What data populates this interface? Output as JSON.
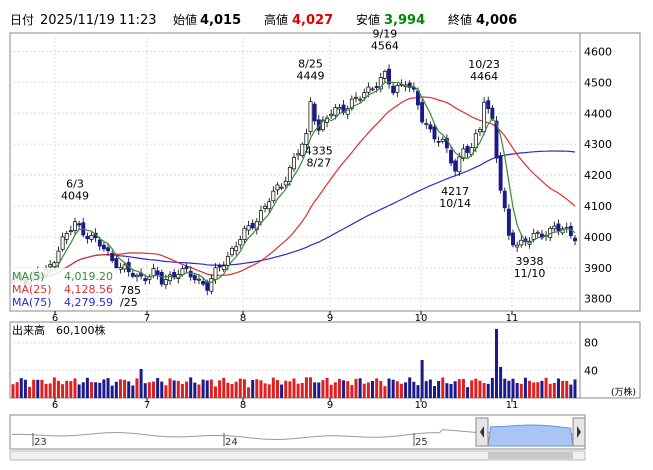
{
  "header": {
    "date_label": "日付",
    "date": "2025/11/19 11:23",
    "open_label": "始値",
    "open": "4,015",
    "high_label": "高値",
    "high": "4,027",
    "low_label": "安値",
    "low": "3,994",
    "close_label": "終値",
    "close": "4,006"
  },
  "colors": {
    "up": "#ffffff",
    "down": "#1a1a8c",
    "ma5": "#3a8a3a",
    "ma25": "#e03030",
    "ma75": "#2a2ad0",
    "high_value": "#dd0000",
    "low_value": "#008800",
    "vol_up": "#e02020",
    "vol_down": "#1a1a8c",
    "nav_fill": "#a9c4f5"
  },
  "chart_data": [
    {
      "type": "candlestick",
      "x_ticks": [
        "6",
        "7",
        "8",
        "9",
        "10",
        "11"
      ],
      "y_ticks": [
        3800,
        3900,
        4000,
        4100,
        4200,
        4300,
        4400,
        4500,
        4600
      ],
      "ylim": [
        3760,
        4660
      ],
      "legend": [
        {
          "key": "ma5",
          "label": "MA(5)",
          "value": "4,019.20"
        },
        {
          "key": "ma25",
          "label": "MA(25)",
          "value": "4,128.56"
        },
        {
          "key": "ma75",
          "label": "MA(75)",
          "value": "4,279.59"
        }
      ],
      "annotations": [
        {
          "lines": [
            "6/3",
            "4049"
          ],
          "index": 15,
          "pos": "above"
        },
        {
          "lines": [
            "8/25",
            "4449"
          ],
          "index": 72,
          "pos": "above"
        },
        {
          "lines": [
            "4335",
            "8/27"
          ],
          "index": 74,
          "pos": "below"
        },
        {
          "lines": [
            "9/19",
            "4564"
          ],
          "index": 90,
          "pos": "above"
        },
        {
          "lines": [
            "4217",
            "10/14"
          ],
          "index": 107,
          "pos": "below"
        },
        {
          "lines": [
            "10/23",
            "4464"
          ],
          "index": 114,
          "pos": "above"
        },
        {
          "lines": [
            "3938",
            "11/10"
          ],
          "index": 125,
          "pos": "below"
        }
      ],
      "partial_label": {
        "text": "785",
        "text2": "/25"
      }
    },
    {
      "type": "bar",
      "title": "出来高",
      "value": "60,100株",
      "y_ticks": [
        40,
        80
      ],
      "unit": "(万株)",
      "x_ticks": [
        "6",
        "7",
        "8",
        "9",
        "10",
        "11"
      ]
    },
    {
      "type": "area",
      "x_ticks": [
        "23",
        "24",
        "25"
      ]
    }
  ]
}
